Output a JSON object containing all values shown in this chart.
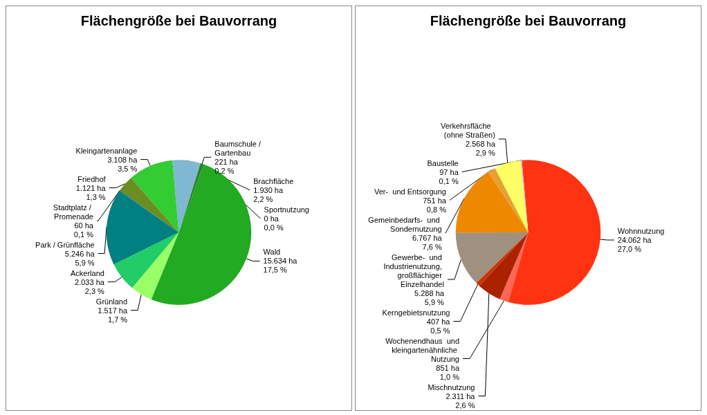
{
  "chart_data": [
    {
      "type": "pie",
      "title": "Flächengröße bei Bauvorrang",
      "categories": [
        "Baumschule / Gartenbau",
        "Sportnutzung",
        "Brachfläche",
        "Kleingartenanlage",
        "Friedhof",
        "Stadtplatz / Promenade",
        "Park / Grünfläche",
        "Ackerland",
        "Grünland",
        "Wald"
      ],
      "values": [
        221,
        0,
        1930,
        3108,
        1121,
        60,
        5246,
        2033,
        1517,
        15634
      ],
      "value_labels": [
        "221 ha\n0,2 %",
        "0 ha\n0,0 %",
        "1.930 ha\n2,2 %",
        "3.108 ha\n3,5 %",
        "1.121 ha\n1,3 %",
        "60 ha\n0,1 %",
        "5.246 ha\n5,9 %",
        "2.033 ha\n2,3 %",
        "1.517 ha\n1,7 %",
        "15.634 ha\n17,5 %"
      ],
      "colors": [
        "#2e7d32",
        "#3c8c3c",
        "#7fb8d0",
        "#33cc33",
        "#6b8e23",
        "#1a6b6b",
        "#008080",
        "#22cc66",
        "#99ff66",
        "#22aa22"
      ],
      "legend": false
    },
    {
      "type": "pie",
      "title": "Flächengröße bei Bauvorrang",
      "categories": [
        "Wohnnutzung",
        "Wochenendhaus  und kleingartenähnliche Nutzung",
        "Mischnutzung",
        "Kerngebietsnutzung",
        "Gewerbe-  und Industrienutzung, großflächiger Einzelhandel",
        "Gemeinbedarfs-  und Sondernutzung",
        "Ver-  und Entsorgung",
        "Verkehrsfläche  (ohne Straßen)",
        "Baustelle"
      ],
      "values": [
        24062,
        851,
        2311,
        407,
        5288,
        6767,
        751,
        2568,
        97
      ],
      "value_labels": [
        "24.062 ha\n27,0 %",
        "851 ha\n1,0 %",
        "2.311 ha\n2,6 %",
        "407 ha\n0,5 %",
        "5.288 ha\n5,9 %",
        "6.767 ha\n7,6 %",
        "751 ha\n0,8 %",
        "2.568 ha\n2,9 %",
        "97 ha\n0,1 %"
      ],
      "colors": [
        "#ff3311",
        "#ff6655",
        "#aa2200",
        "#cc3300",
        "#a09080",
        "#ee8800",
        "#e8a030",
        "#ffff66",
        "#ff99cc"
      ],
      "legend": false
    }
  ]
}
